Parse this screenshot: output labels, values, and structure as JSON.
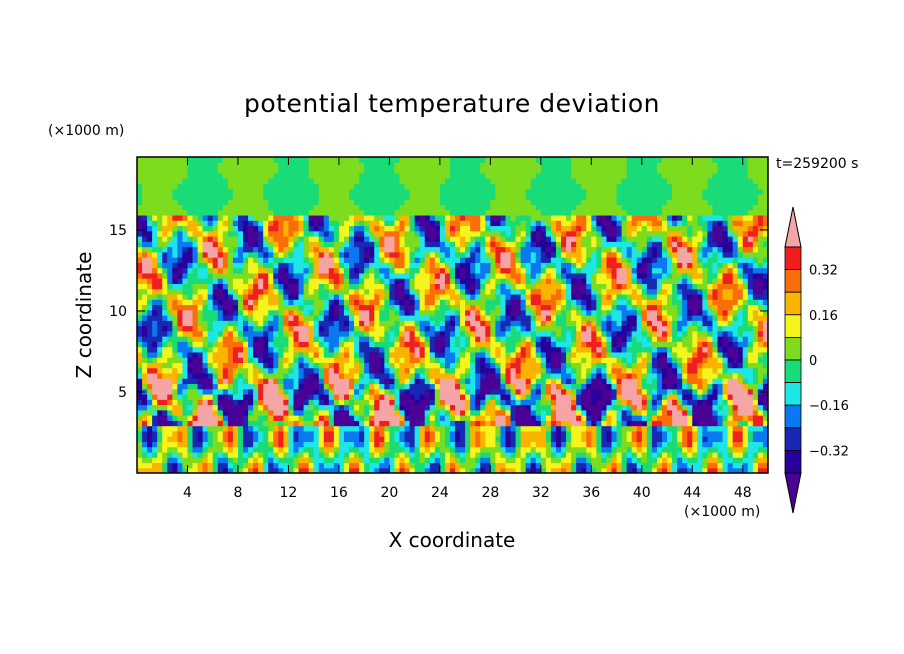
{
  "chart_data": {
    "type": "heatmap",
    "title": "potential temperature deviation",
    "xlabel": "X coordinate",
    "ylabel": "Z coordinate",
    "x_unit": "(×1000 m)",
    "y_unit": "(×1000 m)",
    "time_label": "t=259200 s",
    "xlim": [
      0,
      50
    ],
    "ylim": [
      0,
      19.5
    ],
    "x_ticks": [
      4,
      8,
      12,
      16,
      20,
      24,
      28,
      32,
      36,
      40,
      44,
      48
    ],
    "y_ticks": [
      5,
      10,
      15
    ],
    "colorbar": {
      "levels": [
        -0.4,
        -0.32,
        -0.24,
        -0.16,
        -0.08,
        0,
        0.08,
        0.16,
        0.24,
        0.32,
        0.4
      ],
      "labels": [
        "-0.32",
        "-0.16",
        "0",
        "0.16",
        "0.32"
      ],
      "label_values": [
        -0.32,
        -0.16,
        0,
        0.16,
        0.32
      ],
      "colors": [
        "#4b0096",
        "#28009b",
        "#1928b4",
        "#0a78f0",
        "#1ee6e6",
        "#19dc78",
        "#7ddc1e",
        "#f5f51e",
        "#fab400",
        "#fa6e0a",
        "#f01e1e",
        "#f5a5a5"
      ],
      "extend": "both"
    },
    "grid": false,
    "legend": "right"
  }
}
